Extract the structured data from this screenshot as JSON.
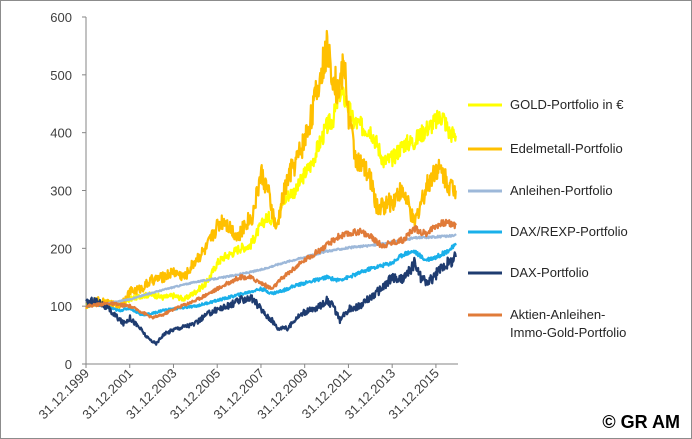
{
  "chart_data": {
    "type": "line",
    "title": "",
    "xlabel": "",
    "ylabel": "",
    "ylim": [
      0,
      600
    ],
    "yticks": [
      0,
      100,
      200,
      300,
      400,
      500,
      600
    ],
    "xlim": [
      1999.99,
      2017.0
    ],
    "xtick_labels": [
      "31.12.1999",
      "31.12.2001",
      "31.12.2003",
      "31.12.2005",
      "31.12.2007",
      "31.12.2009",
      "31.12.2011",
      "31.12.2013",
      "31.12.2015"
    ],
    "xtick_years": [
      1999.99,
      2001.99,
      2003.99,
      2005.99,
      2007.99,
      2009.99,
      2011.99,
      2013.99,
      2015.99
    ],
    "gridlines": false,
    "legend_position": "right",
    "series": [
      {
        "name": "GOLD-Portfolio in €",
        "color": "#ffff00",
        "x": [
          2000.0,
          2000.5,
          2001.0,
          2001.5,
          2002.0,
          2002.5,
          2003.0,
          2003.5,
          2004.0,
          2004.5,
          2005.0,
          2005.5,
          2006.0,
          2006.3,
          2006.6,
          2007.0,
          2007.5,
          2008.0,
          2008.3,
          2008.7,
          2009.0,
          2009.3,
          2009.6,
          2010.0,
          2010.3,
          2010.6,
          2011.0,
          2011.3,
          2011.6,
          2011.9,
          2012.2,
          2012.6,
          2013.0,
          2013.3,
          2013.6,
          2014.0,
          2014.5,
          2015.0,
          2015.5,
          2016.0,
          2016.3,
          2016.6,
          2016.9
        ],
        "values": [
          100,
          105,
          107,
          102,
          112,
          118,
          120,
          115,
          118,
          112,
          125,
          140,
          175,
          185,
          190,
          200,
          205,
          240,
          255,
          245,
          280,
          295,
          300,
          330,
          345,
          375,
          410,
          425,
          470,
          455,
          420,
          410,
          405,
          380,
          350,
          355,
          380,
          385,
          405,
          420,
          430,
          400,
          395
        ]
      },
      {
        "name": "Edelmetall-Portfolio",
        "color": "#ffc000",
        "x": [
          2000.0,
          2000.5,
          2001.0,
          2001.5,
          2002.0,
          2002.5,
          2003.0,
          2003.5,
          2004.0,
          2004.5,
          2005.0,
          2005.5,
          2006.0,
          2006.3,
          2006.6,
          2007.0,
          2007.3,
          2007.6,
          2008.0,
          2008.3,
          2008.7,
          2009.0,
          2009.3,
          2009.6,
          2010.0,
          2010.3,
          2010.6,
          2011.0,
          2011.3,
          2011.5,
          2011.8,
          2012.0,
          2012.3,
          2012.6,
          2013.0,
          2013.3,
          2013.6,
          2014.0,
          2014.3,
          2014.6,
          2015.0,
          2015.3,
          2015.6,
          2016.0,
          2016.3,
          2016.6,
          2016.9
        ],
        "values": [
          100,
          110,
          105,
          100,
          125,
          130,
          145,
          150,
          160,
          150,
          180,
          200,
          240,
          250,
          235,
          220,
          245,
          255,
          330,
          300,
          230,
          290,
          330,
          350,
          390,
          430,
          480,
          545,
          500,
          470,
          520,
          430,
          360,
          340,
          320,
          270,
          275,
          280,
          300,
          290,
          240,
          280,
          310,
          340,
          330,
          310,
          300
        ]
      },
      {
        "name": "Anleihen-Portfolio",
        "color": "#9db8d9",
        "x": [
          2000.0,
          2001.0,
          2002.0,
          2003.0,
          2004.0,
          2005.0,
          2006.0,
          2007.0,
          2008.0,
          2009.0,
          2010.0,
          2011.0,
          2012.0,
          2013.0,
          2014.0,
          2015.0,
          2016.0,
          2016.9
        ],
        "values": [
          100,
          105,
          112,
          123,
          133,
          142,
          148,
          155,
          163,
          175,
          185,
          195,
          201,
          205,
          210,
          218,
          220,
          222
        ]
      },
      {
        "name": "DAX/REXP-Portfolio",
        "color": "#1ab0ea",
        "x": [
          2000.0,
          2000.5,
          2001.0,
          2001.5,
          2002.0,
          2002.5,
          2003.0,
          2003.5,
          2004.0,
          2005.0,
          2006.0,
          2007.0,
          2007.5,
          2008.0,
          2008.5,
          2009.0,
          2009.5,
          2010.0,
          2011.0,
          2011.5,
          2012.0,
          2013.0,
          2014.0,
          2014.5,
          2015.0,
          2015.5,
          2016.0,
          2016.5,
          2016.9
        ],
        "values": [
          100,
          103,
          98,
          92,
          97,
          85,
          87,
          93,
          95,
          100,
          110,
          120,
          125,
          130,
          122,
          127,
          135,
          140,
          150,
          145,
          150,
          165,
          175,
          190,
          195,
          180,
          185,
          195,
          205
        ]
      },
      {
        "name": "DAX-Portfolio",
        "color": "#1f3c70",
        "x": [
          2000.0,
          2000.3,
          2000.7,
          2001.0,
          2001.3,
          2001.7,
          2002.0,
          2002.5,
          2002.8,
          2003.0,
          2003.2,
          2003.5,
          2004.0,
          2004.5,
          2005.0,
          2005.5,
          2006.0,
          2006.5,
          2007.0,
          2007.5,
          2007.9,
          2008.2,
          2008.5,
          2008.8,
          2009.0,
          2009.2,
          2009.6,
          2010.0,
          2010.5,
          2011.0,
          2011.3,
          2011.6,
          2012.0,
          2012.5,
          2013.0,
          2013.5,
          2014.0,
          2014.3,
          2014.6,
          2015.0,
          2015.3,
          2015.6,
          2016.0,
          2016.3,
          2016.6,
          2016.9
        ],
        "values": [
          105,
          110,
          105,
          95,
          85,
          70,
          80,
          60,
          45,
          40,
          35,
          50,
          60,
          65,
          70,
          85,
          95,
          100,
          110,
          115,
          100,
          85,
          75,
          60,
          65,
          60,
          80,
          90,
          95,
          110,
          100,
          75,
          95,
          100,
          115,
          130,
          150,
          145,
          150,
          175,
          150,
          140,
          155,
          170,
          175,
          185
        ]
      },
      {
        "name": "Aktien-Anleihen-Immo-Gold-Portfolio",
        "color": "#e07b39",
        "x": [
          2000.0,
          2001.0,
          2002.0,
          2002.8,
          2003.0,
          2003.5,
          2004.0,
          2005.0,
          2006.0,
          2007.0,
          2007.5,
          2008.0,
          2008.5,
          2009.0,
          2010.0,
          2011.0,
          2011.5,
          2012.0,
          2012.5,
          2013.0,
          2013.5,
          2014.0,
          2014.5,
          2015.0,
          2015.5,
          2016.0,
          2016.5,
          2016.9
        ],
        "values": [
          100,
          105,
          100,
          85,
          80,
          85,
          95,
          110,
          130,
          150,
          150,
          140,
          130,
          150,
          180,
          205,
          220,
          225,
          230,
          220,
          205,
          210,
          215,
          235,
          225,
          240,
          245,
          240
        ]
      }
    ],
    "legend_labels": [
      [
        "GOLD-Portfolio in €"
      ],
      [
        "Edelmetall-Portfolio"
      ],
      [
        "Anleihen-Portfolio"
      ],
      [
        "DAX/REXP-Portfolio"
      ],
      [
        "DAX-Portfolio"
      ],
      [
        "Aktien-Anleihen-",
        "Immo-Gold-Portfolio"
      ]
    ]
  },
  "copyright": "© GR AM"
}
